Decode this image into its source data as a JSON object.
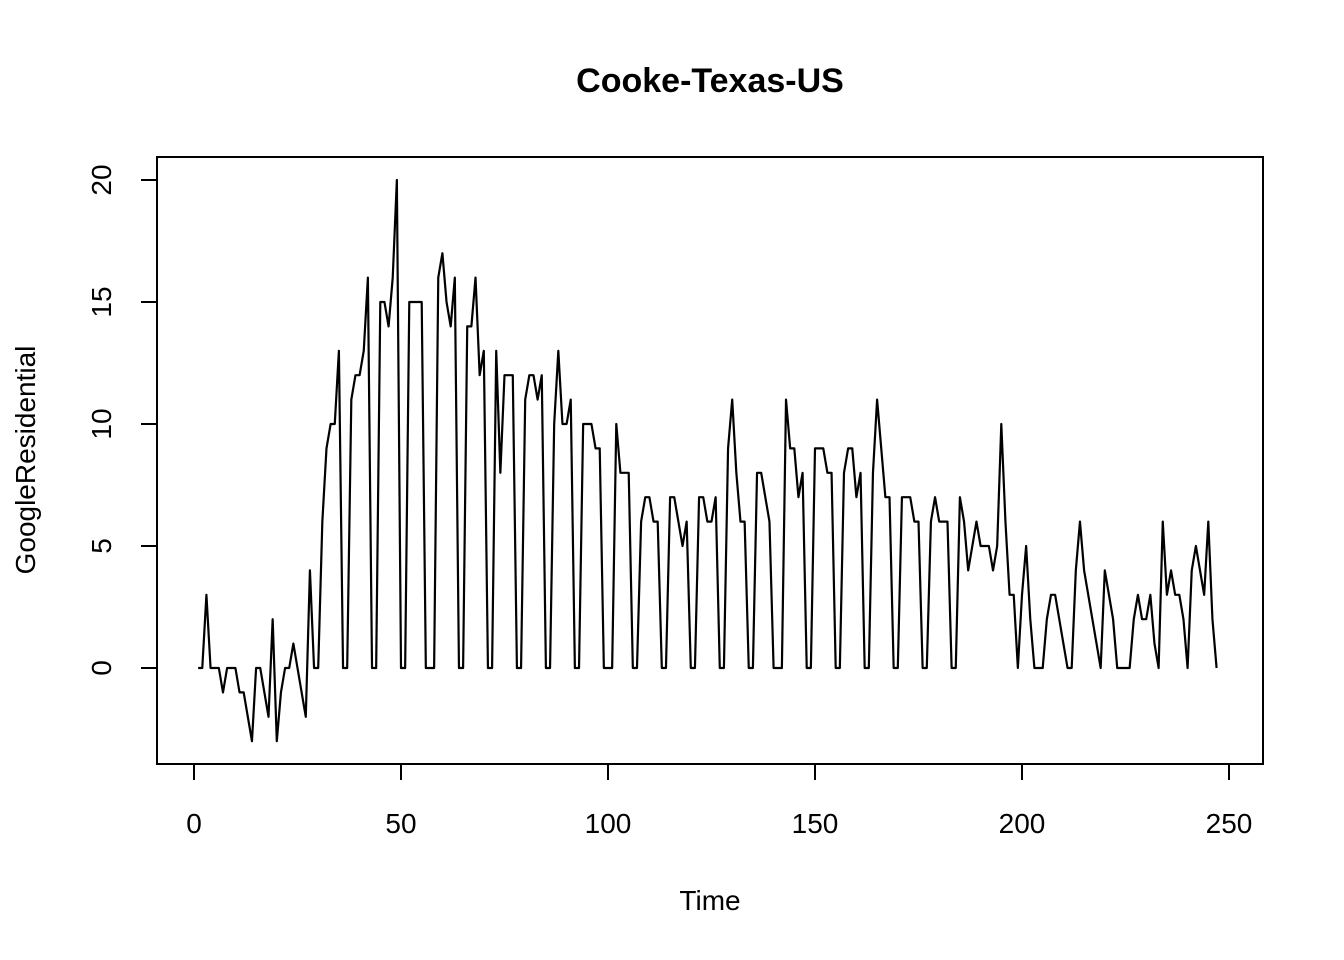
{
  "chart_data": {
    "type": "line",
    "title": "Cooke-Texas-US",
    "xlabel": "Time",
    "ylabel": "GoogleResidential",
    "xlim": [
      0,
      250
    ],
    "ylim": [
      -3,
      20
    ],
    "xticks": [
      0,
      50,
      100,
      150,
      200,
      250
    ],
    "yticks": [
      0,
      5,
      10,
      15,
      20
    ],
    "grid": false,
    "legend": "none",
    "series": [
      {
        "values": [
          0,
          0,
          3,
          0,
          0,
          0,
          -1,
          0,
          0,
          0,
          -1,
          -1,
          -2,
          -3,
          0,
          0,
          -1,
          -2,
          2,
          -3,
          -1,
          0,
          0,
          1,
          0,
          -1,
          -2,
          4,
          0,
          0,
          6,
          9,
          10,
          10,
          13,
          0,
          0,
          11,
          12,
          12,
          13,
          16,
          0,
          0,
          15,
          15,
          14,
          16,
          20,
          0,
          0,
          15,
          15,
          15,
          15,
          0,
          0,
          0,
          16,
          17,
          15,
          14,
          16,
          0,
          0,
          14,
          14,
          16,
          12,
          13,
          0,
          0,
          13,
          8,
          12,
          12,
          12,
          0,
          0,
          11,
          12,
          12,
          11,
          12,
          0,
          0,
          10,
          13,
          10,
          10,
          11,
          0,
          0,
          10,
          10,
          10,
          9,
          9,
          0,
          0,
          0,
          10,
          8,
          8,
          8,
          0,
          0,
          6,
          7,
          7,
          6,
          6,
          0,
          0,
          7,
          7,
          6,
          5,
          6,
          0,
          0,
          7,
          7,
          6,
          6,
          7,
          0,
          0,
          9,
          11,
          8,
          6,
          6,
          0,
          0,
          8,
          8,
          7,
          6,
          0,
          0,
          0,
          11,
          9,
          9,
          7,
          8,
          0,
          0,
          9,
          9,
          9,
          8,
          8,
          0,
          0,
          8,
          9,
          9,
          7,
          8,
          0,
          0,
          8,
          11,
          9,
          7,
          7,
          0,
          0,
          7,
          7,
          7,
          6,
          6,
          0,
          0,
          6,
          7,
          6,
          6,
          6,
          0,
          0,
          7,
          6,
          4,
          5,
          6,
          5,
          5,
          5,
          4,
          5,
          10,
          6,
          3,
          3,
          0,
          3,
          5,
          2,
          0,
          0,
          0,
          2,
          3,
          3,
          2,
          1,
          0,
          0,
          4,
          6,
          4,
          3,
          2,
          1,
          0,
          4,
          3,
          2,
          0,
          0,
          0,
          0,
          2,
          3,
          2,
          2,
          3,
          1,
          0,
          6,
          3,
          4,
          3,
          3,
          2,
          0,
          4,
          5,
          4,
          3,
          6,
          2,
          0
        ]
      }
    ]
  }
}
